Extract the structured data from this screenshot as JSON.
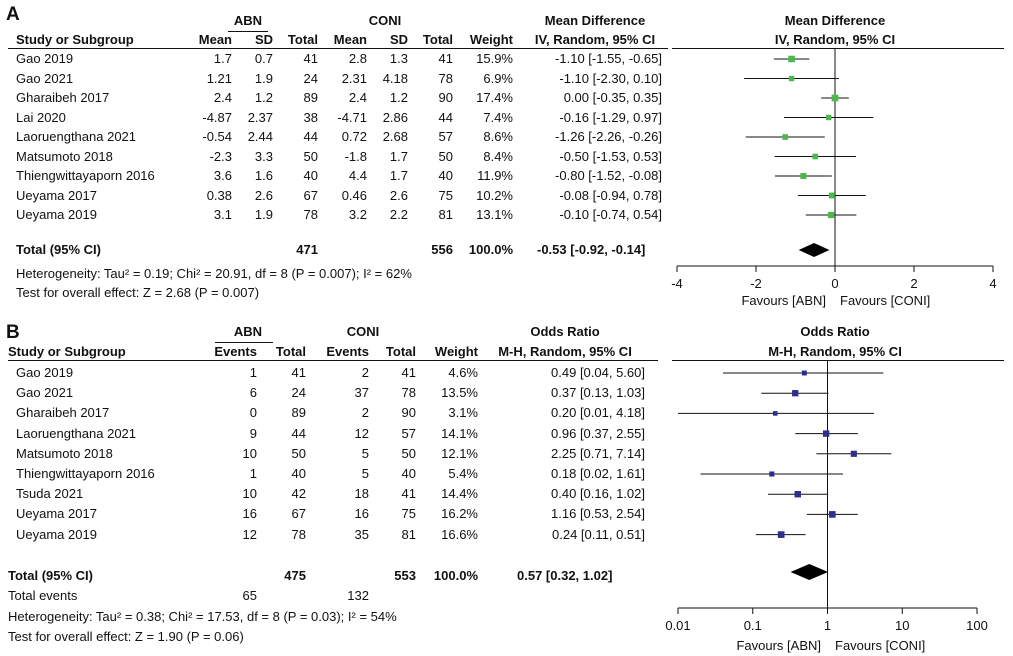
{
  "chart_data": [
    {
      "panel": "A",
      "type": "forest",
      "measure": "Mean Difference",
      "method": "IV, Random, 95% CI",
      "group1": "ABN",
      "group2": "CONI",
      "columns": [
        "Study or Subgroup",
        "Mean",
        "SD",
        "Total",
        "Mean",
        "SD",
        "Total",
        "Weight"
      ],
      "studies": [
        {
          "name": "Gao 2019",
          "m1": "1.7",
          "sd1": "0.7",
          "n1": "41",
          "m2": "2.8",
          "sd2": "1.3",
          "n2": "41",
          "weight": "15.9%",
          "est": -1.1,
          "lo": -1.55,
          "hi": -0.65,
          "ci": "-1.10 [-1.55, -0.65]"
        },
        {
          "name": "Gao 2021",
          "m1": "1.21",
          "sd1": "1.9",
          "n1": "24",
          "m2": "2.31",
          "sd2": "4.18",
          "n2": "78",
          "weight": "6.9%",
          "est": -1.1,
          "lo": -2.3,
          "hi": 0.1,
          "ci": "-1.10 [-2.30, 0.10]"
        },
        {
          "name": "Gharaibeh 2017",
          "m1": "2.4",
          "sd1": "1.2",
          "n1": "89",
          "m2": "2.4",
          "sd2": "1.2",
          "n2": "90",
          "weight": "17.4%",
          "est": 0.0,
          "lo": -0.35,
          "hi": 0.35,
          "ci": "0.00 [-0.35, 0.35]"
        },
        {
          "name": "Lai 2020",
          "m1": "-4.87",
          "sd1": "2.37",
          "n1": "38",
          "m2": "-4.71",
          "sd2": "2.86",
          "n2": "44",
          "weight": "7.4%",
          "est": -0.16,
          "lo": -1.29,
          "hi": 0.97,
          "ci": "-0.16 [-1.29, 0.97]"
        },
        {
          "name": "Laoruengthana 2021",
          "m1": "-0.54",
          "sd1": "2.44",
          "n1": "44",
          "m2": "0.72",
          "sd2": "2.68",
          "n2": "57",
          "weight": "8.6%",
          "est": -1.26,
          "lo": -2.26,
          "hi": -0.26,
          "ci": "-1.26 [-2.26, -0.26]"
        },
        {
          "name": "Matsumoto 2018",
          "m1": "-2.3",
          "sd1": "3.3",
          "n1": "50",
          "m2": "-1.8",
          "sd2": "1.7",
          "n2": "50",
          "weight": "8.4%",
          "est": -0.5,
          "lo": -1.53,
          "hi": 0.53,
          "ci": "-0.50 [-1.53, 0.53]"
        },
        {
          "name": "Thiengwittayaporn 2016",
          "m1": "3.6",
          "sd1": "1.6",
          "n1": "40",
          "m2": "4.4",
          "sd2": "1.7",
          "n2": "40",
          "weight": "11.9%",
          "est": -0.8,
          "lo": -1.52,
          "hi": -0.08,
          "ci": "-0.80 [-1.52, -0.08]"
        },
        {
          "name": "Ueyama 2017",
          "m1": "0.38",
          "sd1": "2.6",
          "n1": "67",
          "m2": "0.46",
          "sd2": "2.6",
          "n2": "75",
          "weight": "10.2%",
          "est": -0.08,
          "lo": -0.94,
          "hi": 0.78,
          "ci": "-0.08 [-0.94, 0.78]"
        },
        {
          "name": "Ueyama 2019",
          "m1": "3.1",
          "sd1": "1.9",
          "n1": "78",
          "m2": "3.2",
          "sd2": "2.2",
          "n2": "81",
          "weight": "13.1%",
          "est": -0.1,
          "lo": -0.74,
          "hi": 0.54,
          "ci": "-0.10 [-0.74, 0.54]"
        }
      ],
      "total": {
        "label": "Total (95% CI)",
        "n1": "471",
        "n2": "556",
        "weight": "100.0%",
        "est": -0.53,
        "lo": -0.92,
        "hi": -0.14,
        "ci": "-0.53 [-0.92, -0.14]"
      },
      "heterogeneity": "Heterogeneity: Tau² = 0.19; Chi² = 20.91, df = 8 (P = 0.007); I² = 62%",
      "overall_effect": "Test for overall effect: Z = 2.68 (P = 0.007)",
      "axis": {
        "scale": "linear",
        "min": -4,
        "max": 4,
        "ticks": [
          -4,
          -2,
          0,
          2,
          4
        ],
        "tick_labels": [
          "-4",
          "-2",
          "0",
          "2",
          "4"
        ]
      },
      "favours_left": "Favours [ABN]",
      "favours_right": "Favours [CONI]",
      "marker_color": "#4cb84c"
    },
    {
      "panel": "B",
      "type": "forest",
      "measure": "Odds Ratio",
      "method": "M-H, Random, 95% CI",
      "group1": "ABN",
      "group2": "CONI",
      "columns": [
        "Study or Subgroup",
        "Events",
        "Total",
        "Events",
        "Total",
        "Weight"
      ],
      "studies": [
        {
          "name": "Gao 2019",
          "e1": "1",
          "n1": "41",
          "e2": "2",
          "n2": "41",
          "weight": "4.6%",
          "est": 0.49,
          "lo": 0.04,
          "hi": 5.6,
          "ci": "0.49 [0.04, 5.60]"
        },
        {
          "name": "Gao 2021",
          "e1": "6",
          "n1": "24",
          "e2": "37",
          "n2": "78",
          "weight": "13.5%",
          "est": 0.37,
          "lo": 0.13,
          "hi": 1.03,
          "ci": "0.37 [0.13, 1.03]"
        },
        {
          "name": "Gharaibeh 2017",
          "e1": "0",
          "n1": "89",
          "e2": "2",
          "n2": "90",
          "weight": "3.1%",
          "est": 0.2,
          "lo": 0.01,
          "hi": 4.18,
          "ci": "0.20 [0.01, 4.18]"
        },
        {
          "name": "Laoruengthana 2021",
          "e1": "9",
          "n1": "44",
          "e2": "12",
          "n2": "57",
          "weight": "14.1%",
          "est": 0.96,
          "lo": 0.37,
          "hi": 2.55,
          "ci": "0.96 [0.37, 2.55]"
        },
        {
          "name": "Matsumoto 2018",
          "e1": "10",
          "n1": "50",
          "e2": "5",
          "n2": "50",
          "weight": "12.1%",
          "est": 2.25,
          "lo": 0.71,
          "hi": 7.14,
          "ci": "2.25 [0.71, 7.14]"
        },
        {
          "name": "Thiengwittayaporn 2016",
          "e1": "1",
          "n1": "40",
          "e2": "5",
          "n2": "40",
          "weight": "5.4%",
          "est": 0.18,
          "lo": 0.02,
          "hi": 1.61,
          "ci": "0.18 [0.02, 1.61]"
        },
        {
          "name": "Tsuda 2021",
          "e1": "10",
          "n1": "42",
          "e2": "18",
          "n2": "41",
          "weight": "14.4%",
          "est": 0.4,
          "lo": 0.16,
          "hi": 1.02,
          "ci": "0.40 [0.16, 1.02]"
        },
        {
          "name": "Ueyama 2017",
          "e1": "16",
          "n1": "67",
          "e2": "16",
          "n2": "75",
          "weight": "16.2%",
          "est": 1.16,
          "lo": 0.53,
          "hi": 2.54,
          "ci": "1.16 [0.53, 2.54]"
        },
        {
          "name": "Ueyama 2019",
          "e1": "12",
          "n1": "78",
          "e2": "35",
          "n2": "81",
          "weight": "16.6%",
          "est": 0.24,
          "lo": 0.11,
          "hi": 0.51,
          "ci": "0.24 [0.11, 0.51]"
        }
      ],
      "total": {
        "label": "Total (95% CI)",
        "n1": "475",
        "n2": "553",
        "weight": "100.0%",
        "est": 0.57,
        "lo": 0.32,
        "hi": 1.02,
        "ci": "0.57 [0.32, 1.02]"
      },
      "total_events": {
        "label": "Total events",
        "e1": "65",
        "e2": "132"
      },
      "heterogeneity": "Heterogeneity: Tau² = 0.38; Chi² = 17.53, df = 8 (P = 0.03); I² = 54%",
      "overall_effect": "Test for overall effect: Z = 1.90 (P = 0.06)",
      "axis": {
        "scale": "log",
        "min": 0.01,
        "max": 100,
        "ticks": [
          0.01,
          0.1,
          1,
          10,
          100
        ],
        "tick_labels": [
          "0.01",
          "0.1",
          "1",
          "10",
          "100"
        ]
      },
      "favours_left": "Favours [ABN]",
      "favours_right": "Favours [CONI]",
      "marker_color": "#2e2e8c"
    }
  ]
}
